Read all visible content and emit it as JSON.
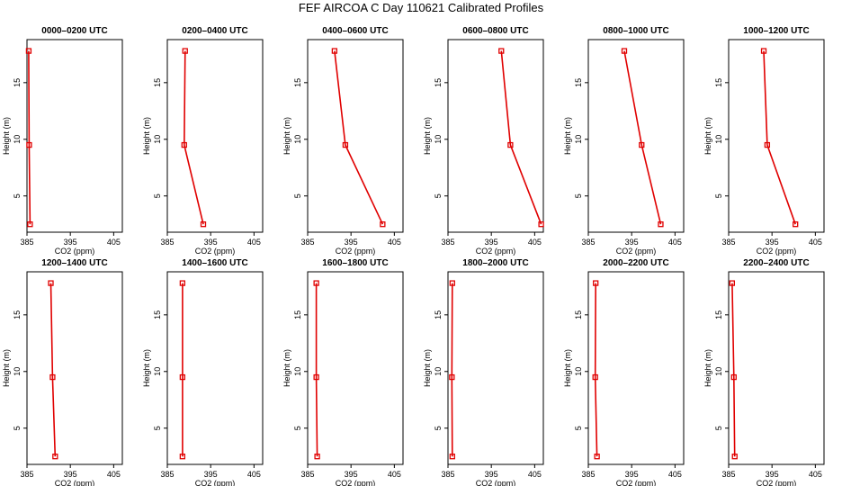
{
  "title": "FEF AIRCOA C  Day 110621  Calibrated Profiles",
  "colors": {
    "series": "#e00000",
    "axis": "#000000",
    "background": "#ffffff"
  },
  "chart_data": [
    {
      "type": "line",
      "title": "0000–0200 UTC",
      "xlabel": "CO2 (ppm)",
      "ylabel": "Height (m)",
      "xlim": [
        385,
        407
      ],
      "ylim": [
        1.8,
        18.8
      ],
      "xticks": [
        385,
        395,
        405
      ],
      "yticks": [
        5,
        10,
        15
      ],
      "x": [
        385.4,
        385.5,
        385.7
      ],
      "y": [
        17.8,
        9.5,
        2.5
      ]
    },
    {
      "type": "line",
      "title": "0200–0400 UTC",
      "xlabel": "CO2 (ppm)",
      "ylabel": "Height (m)",
      "xlim": [
        385,
        407
      ],
      "ylim": [
        1.8,
        18.8
      ],
      "xticks": [
        385,
        395,
        405
      ],
      "yticks": [
        5,
        10,
        15
      ],
      "x": [
        389.1,
        388.9,
        393.3
      ],
      "y": [
        17.8,
        9.5,
        2.5
      ]
    },
    {
      "type": "line",
      "title": "0400–0600 UTC",
      "xlabel": "CO2 (ppm)",
      "ylabel": "Height (m)",
      "xlim": [
        385,
        407
      ],
      "ylim": [
        1.8,
        18.8
      ],
      "xticks": [
        385,
        395,
        405
      ],
      "yticks": [
        5,
        10,
        15
      ],
      "x": [
        391.2,
        393.7,
        402.3
      ],
      "y": [
        17.8,
        9.5,
        2.5
      ]
    },
    {
      "type": "line",
      "title": "0600–0800 UTC",
      "xlabel": "CO2 (ppm)",
      "ylabel": "Height (m)",
      "xlim": [
        385,
        407
      ],
      "ylim": [
        1.8,
        18.8
      ],
      "xticks": [
        385,
        395,
        405
      ],
      "yticks": [
        5,
        10,
        15
      ],
      "x": [
        397.3,
        399.4,
        406.5
      ],
      "y": [
        17.8,
        9.5,
        2.5
      ]
    },
    {
      "type": "line",
      "title": "0800–1000 UTC",
      "xlabel": "CO2 (ppm)",
      "ylabel": "Height (m)",
      "xlim": [
        385,
        407
      ],
      "ylim": [
        1.8,
        18.8
      ],
      "xticks": [
        385,
        395,
        405
      ],
      "yticks": [
        5,
        10,
        15
      ],
      "x": [
        393.3,
        397.3,
        401.7
      ],
      "y": [
        17.8,
        9.5,
        2.5
      ]
    },
    {
      "type": "line",
      "title": "1000–1200 UTC",
      "xlabel": "CO2 (ppm)",
      "ylabel": "Height (m)",
      "xlim": [
        385,
        407
      ],
      "ylim": [
        1.8,
        18.8
      ],
      "xticks": [
        385,
        395,
        405
      ],
      "yticks": [
        5,
        10,
        15
      ],
      "x": [
        393.1,
        393.9,
        400.4
      ],
      "y": [
        17.8,
        9.5,
        2.5
      ]
    },
    {
      "type": "line",
      "title": "1200–1400 UTC",
      "xlabel": "CO2 (ppm)",
      "ylabel": "Height (m)",
      "xlim": [
        385,
        407
      ],
      "ylim": [
        1.8,
        18.8
      ],
      "xticks": [
        385,
        395,
        405
      ],
      "yticks": [
        5,
        10,
        15
      ],
      "x": [
        390.5,
        390.9,
        391.5
      ],
      "y": [
        17.8,
        9.5,
        2.5
      ]
    },
    {
      "type": "line",
      "title": "1400–1600 UTC",
      "xlabel": "CO2 (ppm)",
      "ylabel": "Height (m)",
      "xlim": [
        385,
        407
      ],
      "ylim": [
        1.8,
        18.8
      ],
      "xticks": [
        385,
        395,
        405
      ],
      "yticks": [
        5,
        10,
        15
      ],
      "x": [
        388.5,
        388.5,
        388.5
      ],
      "y": [
        17.8,
        9.5,
        2.5
      ]
    },
    {
      "type": "line",
      "title": "1600–1800 UTC",
      "xlabel": "CO2 (ppm)",
      "ylabel": "Height (m)",
      "xlim": [
        385,
        407
      ],
      "ylim": [
        1.8,
        18.8
      ],
      "xticks": [
        385,
        395,
        405
      ],
      "yticks": [
        5,
        10,
        15
      ],
      "x": [
        387.0,
        387.0,
        387.2
      ],
      "y": [
        17.8,
        9.5,
        2.5
      ]
    },
    {
      "type": "line",
      "title": "1800–2000 UTC",
      "xlabel": "CO2 (ppm)",
      "ylabel": "Height (m)",
      "xlim": [
        385,
        407
      ],
      "ylim": [
        1.8,
        18.8
      ],
      "xticks": [
        385,
        395,
        405
      ],
      "yticks": [
        5,
        10,
        15
      ],
      "x": [
        386.0,
        385.9,
        386.0
      ],
      "y": [
        17.8,
        9.5,
        2.5
      ]
    },
    {
      "type": "line",
      "title": "2000–2200 UTC",
      "xlabel": "CO2 (ppm)",
      "ylabel": "Height (m)",
      "xlim": [
        385,
        407
      ],
      "ylim": [
        1.8,
        18.8
      ],
      "xticks": [
        385,
        395,
        405
      ],
      "yticks": [
        5,
        10,
        15
      ],
      "x": [
        386.7,
        386.6,
        387.0
      ],
      "y": [
        17.8,
        9.5,
        2.5
      ]
    },
    {
      "type": "line",
      "title": "2200–2400 UTC",
      "xlabel": "CO2 (ppm)",
      "ylabel": "Height (m)",
      "xlim": [
        385,
        407
      ],
      "ylim": [
        1.8,
        18.8
      ],
      "xticks": [
        385,
        395,
        405
      ],
      "yticks": [
        5,
        10,
        15
      ],
      "x": [
        385.8,
        386.2,
        386.4
      ],
      "y": [
        17.8,
        9.5,
        2.5
      ]
    }
  ]
}
